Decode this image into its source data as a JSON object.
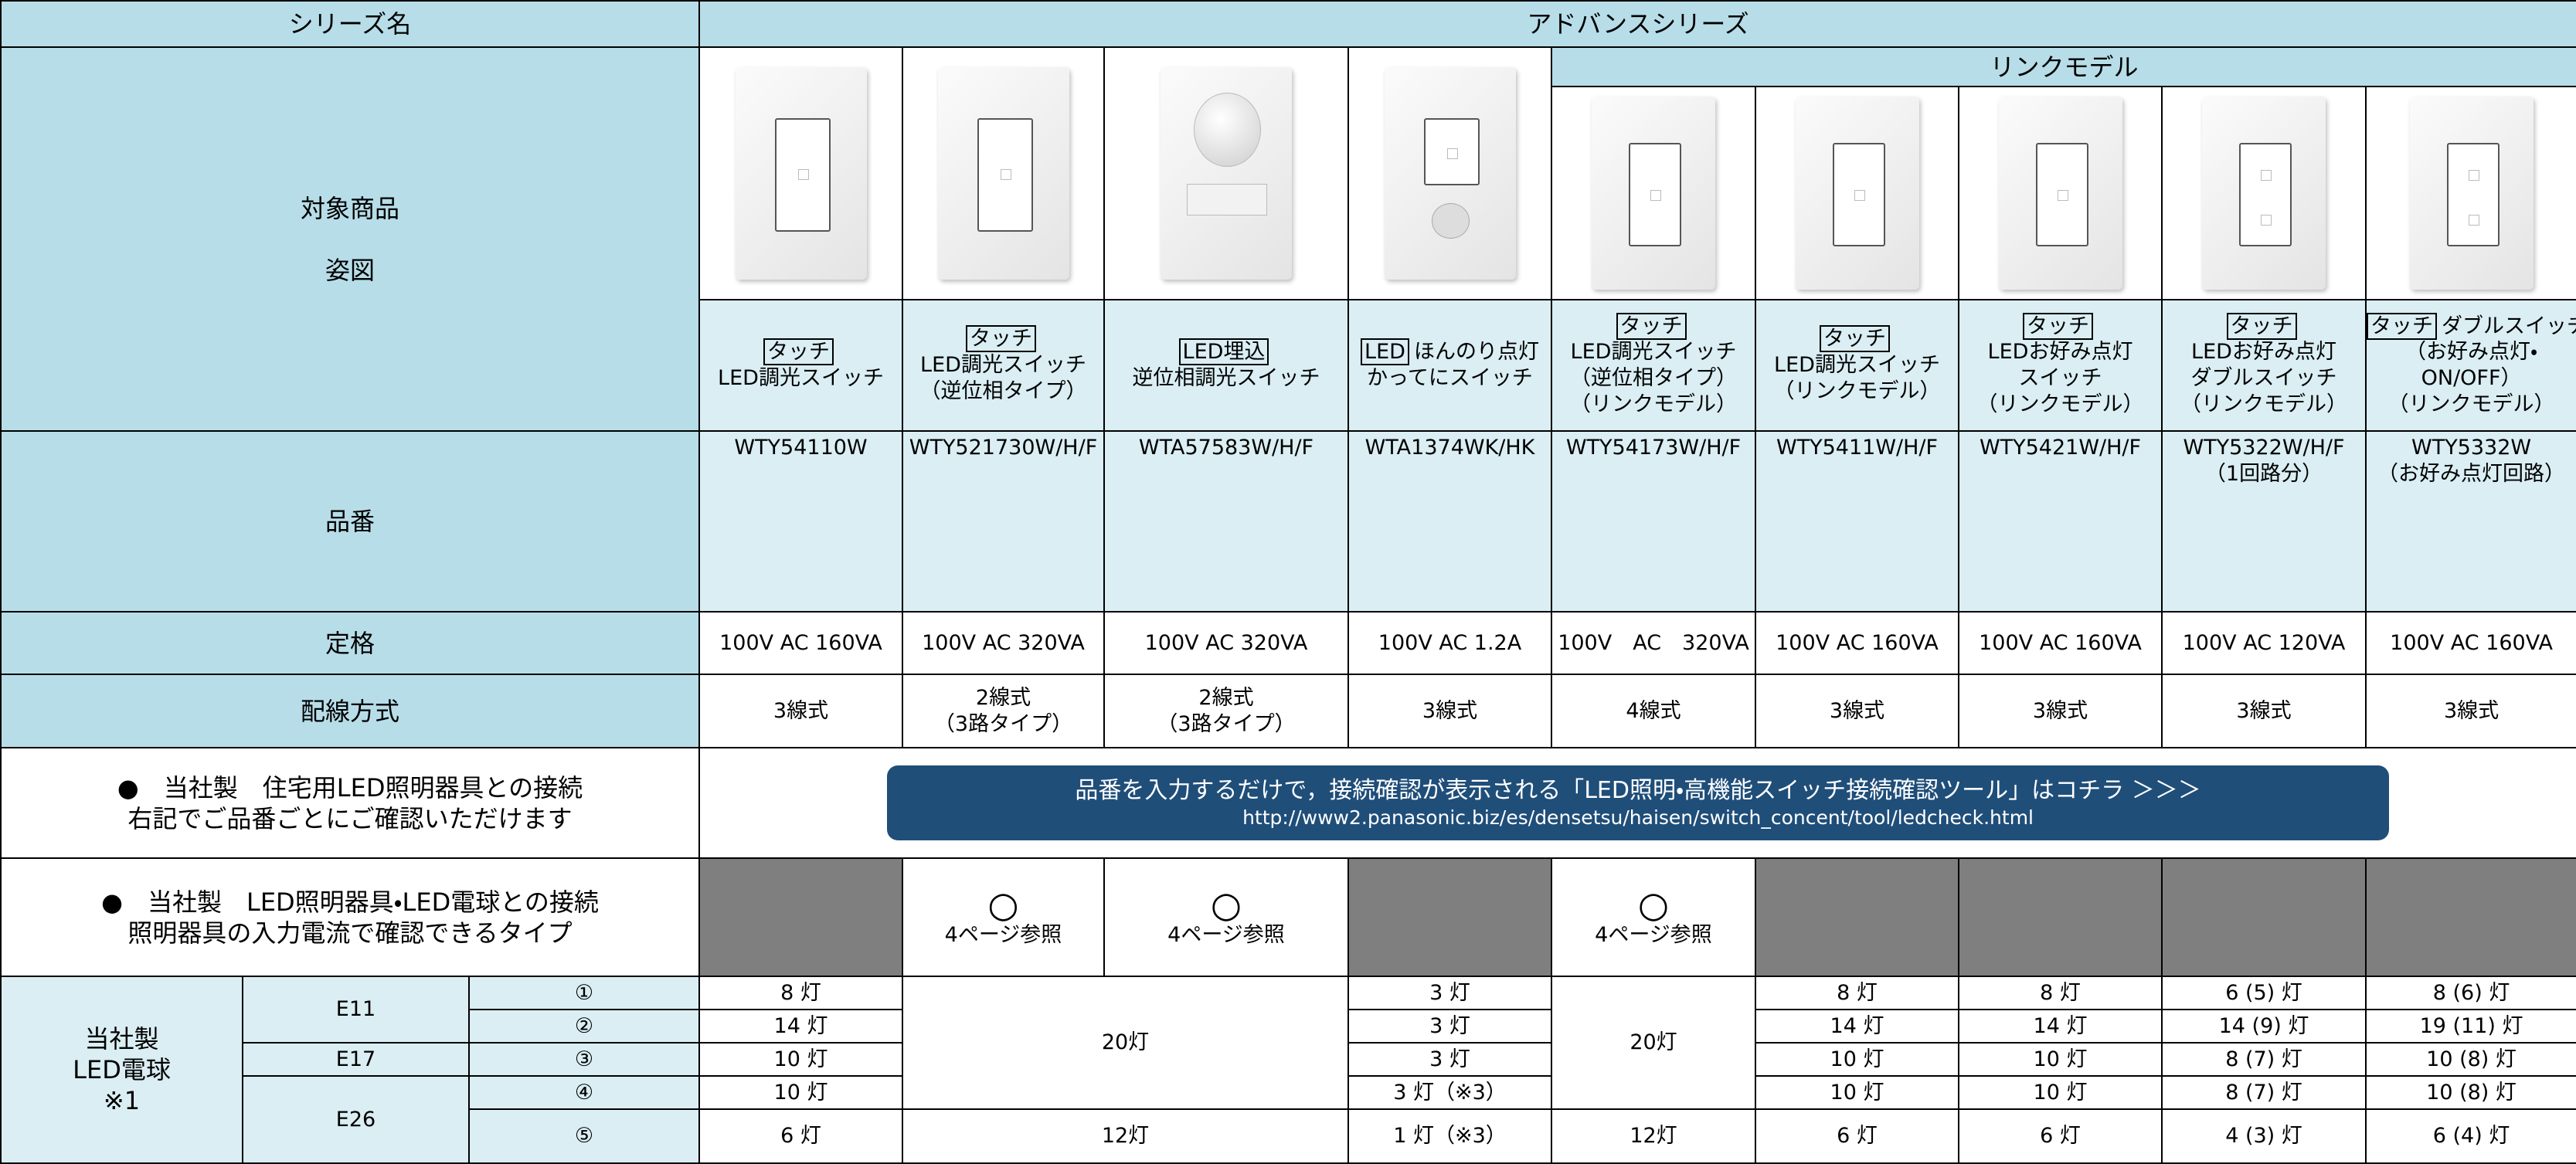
{
  "header": {
    "series_label": "シリーズ名",
    "series_name": "アドバンスシリーズ",
    "link_model": "リンクモデル"
  },
  "row_labels": {
    "product": [
      "対象商品",
      "姿図"
    ],
    "part": "品番",
    "rating": "定格",
    "wiring": "配線方式"
  },
  "products": [
    {
      "name": [
        {
          "badge": "タッチ"
        },
        {
          "text": "LED調光スイッチ"
        }
      ],
      "part": [
        "WTY54110W"
      ],
      "rating": "100V AC 160VA",
      "wiring": [
        "3線式"
      ]
    },
    {
      "name": [
        {
          "badge": "タッチ"
        },
        {
          "text": "LED調光スイッチ"
        },
        {
          "text": "（逆位相タイプ）"
        }
      ],
      "part": [
        "WTY521730W/H/F"
      ],
      "rating": "100V AC 320VA",
      "wiring": [
        "2線式",
        "（3路タイプ）"
      ]
    },
    {
      "name": [
        {
          "badge": "LED埋込"
        },
        {
          "text": "逆位相調光スイッチ"
        }
      ],
      "part": [
        "WTA57583W/H/F"
      ],
      "rating": "100V AC 320VA",
      "wiring": [
        "2線式",
        "（3路タイプ）"
      ]
    },
    {
      "name": [
        {
          "badge": "LED",
          "text": "ほんのり点灯"
        },
        {
          "text": "かってにスイッチ"
        }
      ],
      "part": [
        "WTA1374WK/HK"
      ],
      "rating": "100V AC 1.2A",
      "wiring": [
        "3線式"
      ]
    },
    {
      "name": [
        {
          "badge": "タッチ"
        },
        {
          "text": "LED調光スイッチ"
        },
        {
          "text": "（逆位相タイプ）"
        },
        {
          "text": "（リンクモデル）"
        }
      ],
      "part": [
        "WTY54173W/H/F"
      ],
      "rating": "100V　AC　320VA",
      "wiring": [
        "4線式"
      ]
    },
    {
      "name": [
        {
          "badge": "タッチ"
        },
        {
          "text": "LED調光スイッチ"
        },
        {
          "text": "（リンクモデル）"
        }
      ],
      "part": [
        "WTY5411W/H/F"
      ],
      "rating": "100V AC 160VA",
      "wiring": [
        "3線式"
      ]
    },
    {
      "name": [
        {
          "badge": "タッチ"
        },
        {
          "text": "LEDお好み点灯"
        },
        {
          "text": "スイッチ"
        },
        {
          "text": "（リンクモデル）"
        }
      ],
      "part": [
        "WTY5421W/H/F"
      ],
      "rating": "100V AC 160VA",
      "wiring": [
        "3線式"
      ]
    },
    {
      "name": [
        {
          "badge": "タッチ"
        },
        {
          "text": "LEDお好み点灯"
        },
        {
          "text": "ダブルスイッチ"
        },
        {
          "text": "（リンクモデル）"
        }
      ],
      "part": [
        "WTY5322W/H/F",
        "（1回路分）"
      ],
      "rating": "100V AC 120VA",
      "wiring": [
        "3線式"
      ]
    },
    {
      "name": [
        {
          "badge": "タッチ",
          "text": "ダブルスイッチ"
        },
        {
          "text": "（お好み点灯・"
        },
        {
          "text": "ON/OFF）"
        },
        {
          "text": "（リンクモデル）"
        }
      ],
      "part": [
        "WTY5332W",
        "（お好み点灯回路）"
      ],
      "rating": "100V AC 160VA",
      "wiring": [
        "3線式"
      ]
    }
  ],
  "connection": {
    "label": [
      "●　当社製　住宅用LED照明器具との接続",
      "右記でご品番ごとにご確認いただけます"
    ],
    "banner": "品番を入力するだけで，接続確認が表示される「LED照明・高機能スイッチ接続確認ツール」はコチラ ＞＞＞",
    "url": "http://www2.panasonic.biz/es/densetsu/haisen/switch_concent/tool/ledcheck.html"
  },
  "led_check": {
    "label": [
      "●　当社製　LED照明器具・LED電球との接続",
      "照明器具の入力電流で確認できるタイプ"
    ],
    "cells": [
      null,
      {
        "mark": "○",
        "text": "4ページ参照"
      },
      {
        "mark": "○",
        "text": "4ページ参照"
      },
      null,
      {
        "mark": "○",
        "text": "4ページ参照"
      },
      null,
      null,
      null,
      null
    ]
  },
  "bulbs": {
    "label": [
      "当社製",
      "LED電球",
      "※1"
    ],
    "sockets": [
      "E11",
      "E17",
      "E26"
    ],
    "rows": [
      {
        "num": "①",
        "values": [
          "8 灯",
          "20灯",
          null,
          "3 灯",
          "20灯",
          "8 灯",
          "8 灯",
          "6 (5) 灯",
          "8 (6) 灯"
        ]
      },
      {
        "num": "②",
        "values": [
          "14 灯",
          null,
          null,
          "3 灯",
          null,
          "14 灯",
          "14 灯",
          "14 (9) 灯",
          "19 (11) 灯"
        ]
      },
      {
        "num": "③",
        "values": [
          "10 灯",
          null,
          null,
          "3 灯",
          null,
          "10 灯",
          "10 灯",
          "8 (7) 灯",
          "10 (8) 灯"
        ]
      },
      {
        "num": "④",
        "values": [
          "10 灯",
          null,
          null,
          "3 灯（※3）",
          null,
          "10 灯",
          "10 灯",
          "8 (7) 灯",
          "10 (8) 灯"
        ]
      },
      {
        "num": "⑤",
        "values": [
          "6 灯",
          "12灯",
          null,
          "1 灯（※3）",
          "12灯",
          "6 灯",
          "6 灯",
          "4 (3) 灯",
          "6 (4) 灯"
        ]
      }
    ]
  }
}
